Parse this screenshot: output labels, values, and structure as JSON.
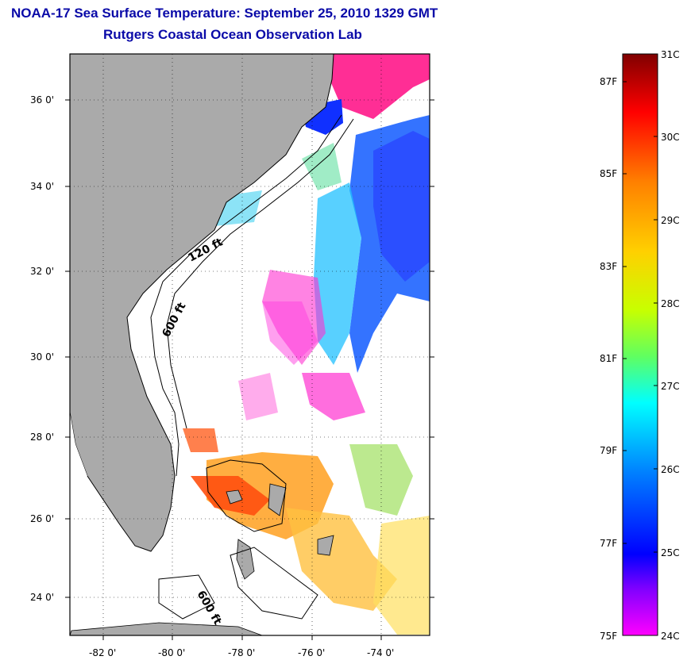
{
  "title": {
    "line1": "NOAA-17 Sea Surface Temperature:  September 25, 2010 1329 GMT",
    "line2": "Rutgers Coastal Ocean Observation Lab"
  },
  "map": {
    "lat_labels": [
      "36 0'",
      "34 0'",
      "32 0'",
      "30 0'",
      "28 0'",
      "26 0'",
      "24 0'"
    ],
    "lon_labels": [
      "-82 0'",
      "-80 0'",
      "-78 0'",
      "-76 0'",
      "-74 0'"
    ],
    "depth_labels": [
      "120 ft",
      "600 ft",
      "600 ft"
    ],
    "land_color": "#aaaaaa",
    "cloud_color": "#ffffff"
  },
  "colorbar": {
    "celsius_labels": [
      "31C",
      "30C",
      "29C",
      "28C",
      "27C",
      "26C",
      "25C",
      "24C"
    ],
    "fahrenheit_labels": [
      "87F",
      "85F",
      "83F",
      "81F",
      "79F",
      "77F",
      "75F"
    ],
    "colors": [
      "#800000",
      "#ff0000",
      "#ff8000",
      "#ffd000",
      "#c8ff00",
      "#00ff80",
      "#00ffff",
      "#0080ff",
      "#0000ff",
      "#8000ff",
      "#ff00ff"
    ]
  }
}
